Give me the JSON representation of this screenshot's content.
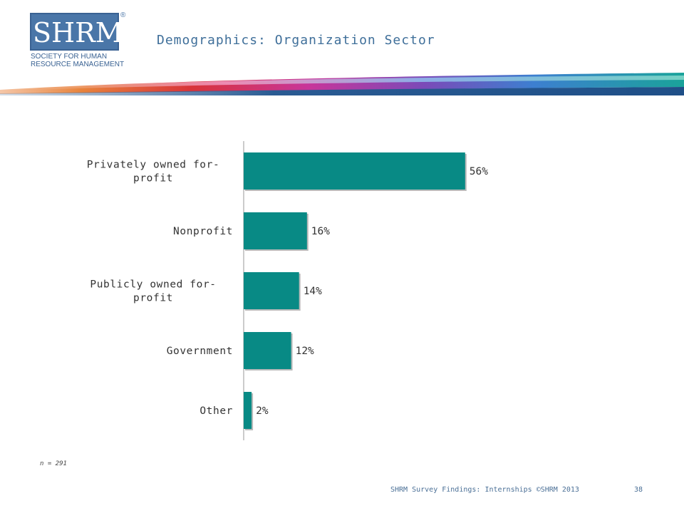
{
  "header": {
    "logo": {
      "mark": "SHRM",
      "registered": "®",
      "line1": "SOCIETY FOR HUMAN",
      "line2": "RESOURCE MANAGEMENT"
    },
    "title": "Demographics: Organization Sector"
  },
  "colors": {
    "bar": "#088a85",
    "title": "#3f6f9a",
    "logo": "#4a76a8"
  },
  "chart_data": {
    "type": "bar",
    "orientation": "horizontal",
    "categories": [
      "Privately owned for-profit",
      "Nonprofit",
      "Publicly owned for-profit",
      "Government",
      "Other"
    ],
    "category_lines": [
      [
        "Privately owned for-",
        "profit"
      ],
      [
        "Nonprofit"
      ],
      [
        "Publicly owned for-",
        "profit"
      ],
      [
        "Government"
      ],
      [
        "Other"
      ]
    ],
    "values": [
      56,
      16,
      14,
      12,
      2
    ],
    "value_labels": [
      "56%",
      "16%",
      "14%",
      "12%",
      "2%"
    ],
    "xlim": [
      0,
      100
    ],
    "grid": false,
    "legend": "none"
  },
  "footnote": "n = 291",
  "footer": {
    "text": "SHRM Survey Findings: Internships ©SHRM 2013",
    "page": "38"
  }
}
